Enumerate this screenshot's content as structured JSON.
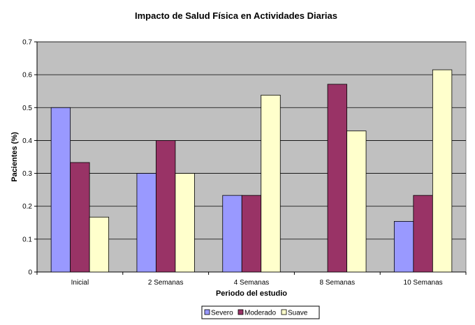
{
  "chart_data": {
    "type": "bar",
    "title": "Impacto de Salud Física en Actividades Diarias",
    "xlabel": "Periodo del estudio",
    "ylabel": "Pacientes (%)",
    "categories": [
      "Inicial",
      "2 Semanas",
      "4 Semanas",
      "8 Semanas",
      "10 Semanas"
    ],
    "ylim": [
      0,
      0.7
    ],
    "yticks": [
      "0",
      "0.1",
      "0.2",
      "0.3",
      "0.4",
      "0.5",
      "0.6",
      "0.7"
    ],
    "grid": true,
    "legend_position": "bottom",
    "series": [
      {
        "name": "Severo",
        "color": "#9999ff",
        "values": [
          0.5,
          0.3,
          0.233,
          0,
          0.154
        ]
      },
      {
        "name": "Moderado",
        "color": "#993366",
        "values": [
          0.333,
          0.4,
          0.233,
          0.571,
          0.233
        ]
      },
      {
        "name": "Suave",
        "color": "#ffffcc",
        "values": [
          0.167,
          0.3,
          0.538,
          0.429,
          0.615
        ]
      }
    ],
    "plot_background": "#c0c0c0"
  }
}
